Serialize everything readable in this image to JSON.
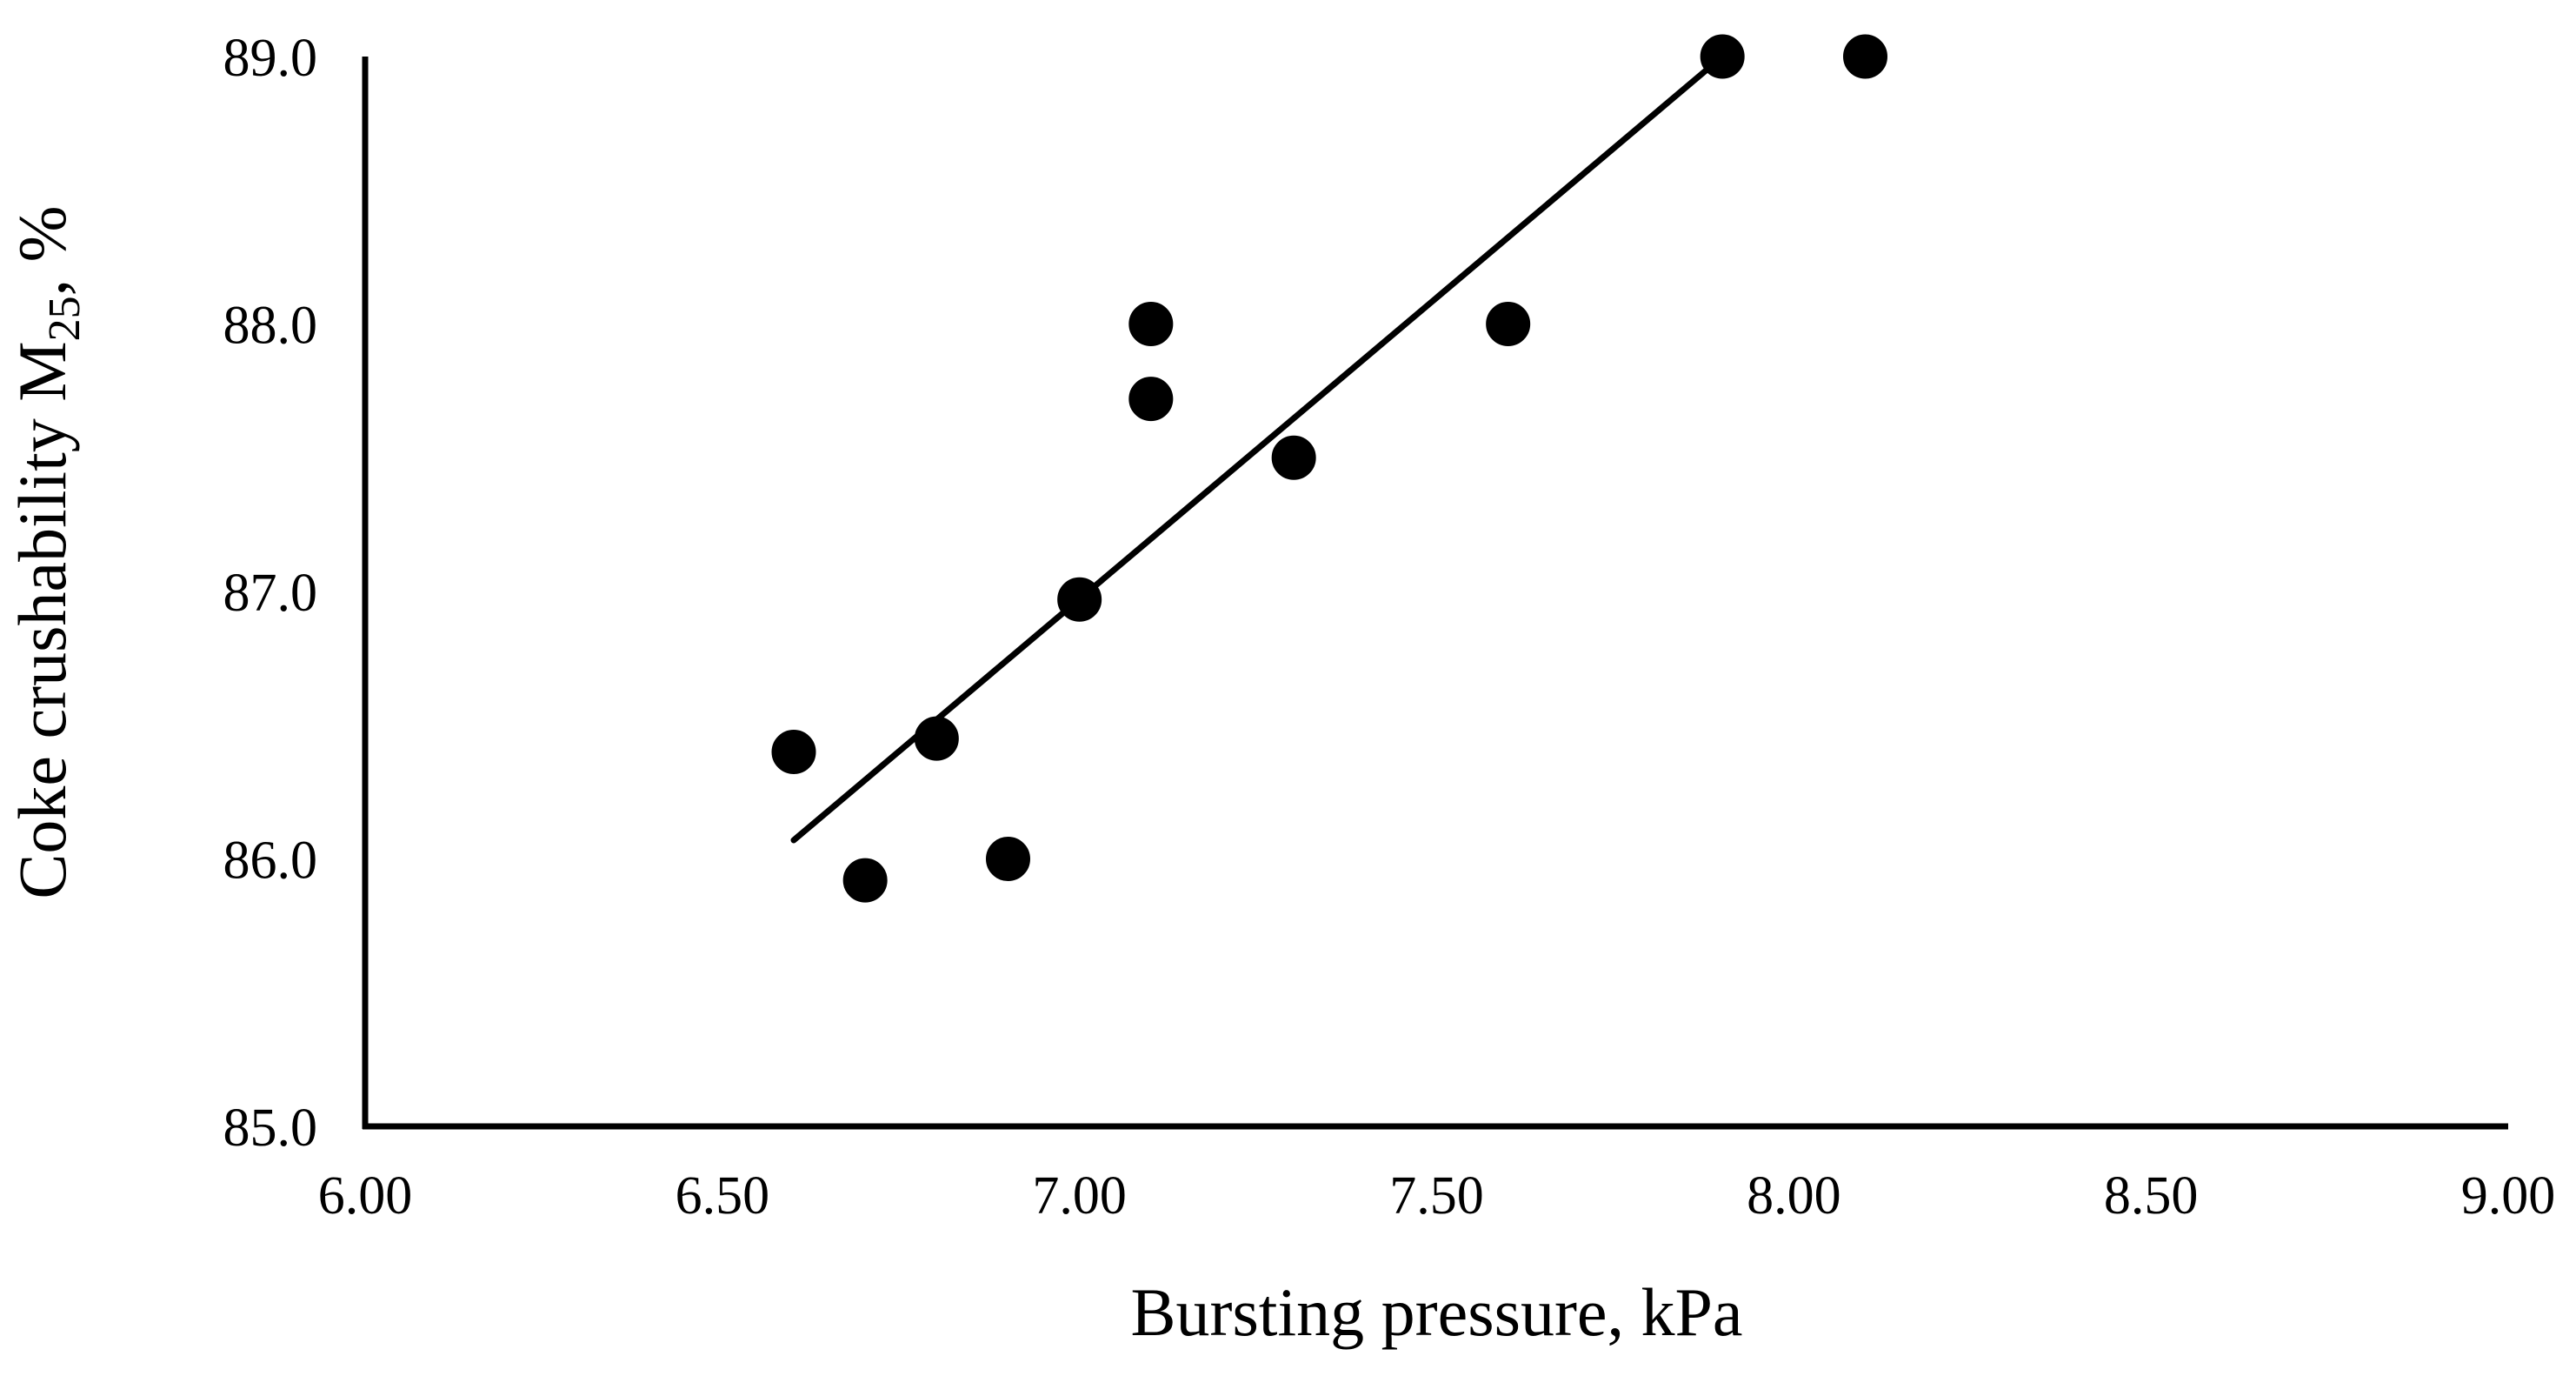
{
  "chart_data": {
    "type": "scatter",
    "title": "",
    "xlabel": "Bursting pressure, kPa",
    "ylabel": {
      "main": "Coke crushability M",
      "subscript": "25",
      "suffix": ", %"
    },
    "xlim": [
      6.0,
      9.0
    ],
    "ylim": [
      85.0,
      89.0
    ],
    "x_ticks": [
      "6.00",
      "6.50",
      "7.00",
      "7.50",
      "8.00",
      "8.50",
      "9.00"
    ],
    "y_ticks": [
      "85.0",
      "86.0",
      "87.0",
      "88.0",
      "89.0"
    ],
    "grid": false,
    "legend": "none",
    "series": [
      {
        "marker": "circle",
        "color": "#000000",
        "points": [
          {
            "x": 6.6,
            "y": 86.4
          },
          {
            "x": 6.7,
            "y": 85.92
          },
          {
            "x": 6.8,
            "y": 86.45
          },
          {
            "x": 6.9,
            "y": 86.0
          },
          {
            "x": 7.0,
            "y": 86.97
          },
          {
            "x": 7.1,
            "y": 88.0
          },
          {
            "x": 7.1,
            "y": 87.72
          },
          {
            "x": 7.3,
            "y": 87.5
          },
          {
            "x": 7.6,
            "y": 88.0
          },
          {
            "x": 7.9,
            "y": 89.0
          },
          {
            "x": 8.1,
            "y": 89.0
          }
        ]
      }
    ],
    "trendline": {
      "type": "linear",
      "color": "#000000",
      "points": [
        {
          "x": 6.6,
          "y": 86.07
        },
        {
          "x": 7.9,
          "y": 89.0
        }
      ]
    }
  }
}
